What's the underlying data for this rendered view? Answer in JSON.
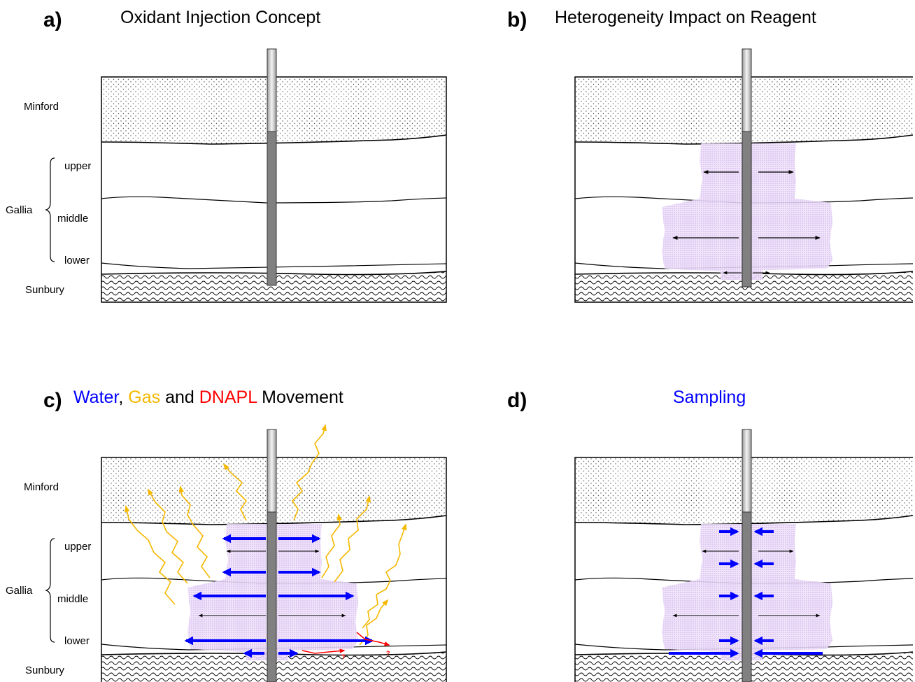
{
  "panels": [
    {
      "letter": "a)",
      "title_parts": [
        {
          "text": "Oxidant Injection Concept",
          "color": "#000000"
        }
      ]
    },
    {
      "letter": "b)",
      "title_parts": [
        {
          "text": "Heterogeneity Impact on Reagent",
          "color": "#000000"
        }
      ]
    },
    {
      "letter": "c)",
      "title_parts": [
        {
          "text": "Water",
          "color": "#0000ff"
        },
        {
          "text": ", ",
          "color": "#000000"
        },
        {
          "text": "Gas",
          "color": "#f5b800"
        },
        {
          "text": " and ",
          "color": "#000000"
        },
        {
          "text": "DNAPL",
          "color": "#ff0000"
        },
        {
          "text": " Movement",
          "color": "#000000"
        }
      ]
    },
    {
      "letter": "d)",
      "title_parts": [
        {
          "text": "Sampling",
          "color": "#0000ff"
        }
      ]
    }
  ],
  "layers": {
    "minford": "Minford",
    "gallia": "Gallia",
    "upper": "upper",
    "middle": "middle",
    "lower": "lower",
    "sunbury": "Sunbury"
  },
  "unknown_marker": "?",
  "colors": {
    "water": "#0000ff",
    "gas": "#f5b800",
    "dnapl": "#ff0000",
    "reagent": "#cc99ee",
    "well_pipe": "#808080",
    "well_riser": "#e0e0e0"
  }
}
